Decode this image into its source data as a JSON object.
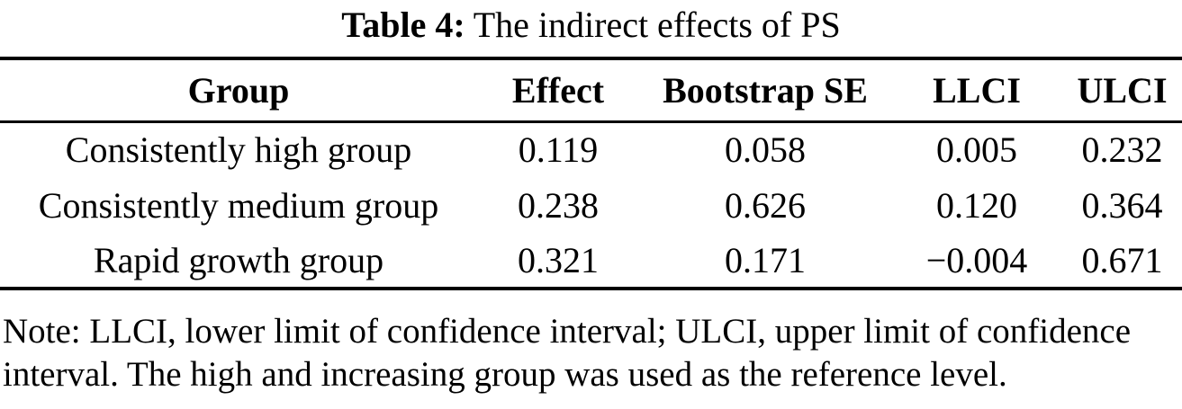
{
  "caption": {
    "label": "Table 4:",
    "text": "The indirect effects of PS"
  },
  "table": {
    "columns": [
      "Group",
      "Effect",
      "Bootstrap SE",
      "LLCI",
      "ULCI"
    ],
    "rows": [
      [
        "Consistently high group",
        "0.119",
        "0.058",
        "0.005",
        "0.232"
      ],
      [
        "Consistently medium group",
        "0.238",
        "0.626",
        "0.120",
        "0.364"
      ],
      [
        "Rapid growth group",
        "0.321",
        "0.171",
        "−0.004",
        "0.671"
      ]
    ]
  },
  "note": {
    "lines": [
      "Note: LLCI, lower limit of confidence interval; ULCI, upper limit of confidence",
      "interval. The high and increasing group was used as the reference level."
    ]
  },
  "colors": {
    "text": "#000000",
    "background": "#ffffff",
    "rule": "#000000"
  },
  "chart_data": {
    "type": "table",
    "title": "Table 4: The indirect effects of PS",
    "columns": [
      "Group",
      "Effect",
      "Bootstrap SE",
      "LLCI",
      "ULCI"
    ],
    "rows": [
      [
        "Consistently high group",
        0.119,
        0.058,
        0.005,
        0.232
      ],
      [
        "Consistently medium group",
        0.238,
        0.626,
        0.12,
        0.364
      ],
      [
        "Rapid growth group",
        0.321,
        0.171,
        -0.004,
        0.671
      ]
    ],
    "note": "Note: LLCI, lower limit of confidence interval; ULCI, upper limit of confidence interval. The high and increasing group was used as the reference level."
  }
}
